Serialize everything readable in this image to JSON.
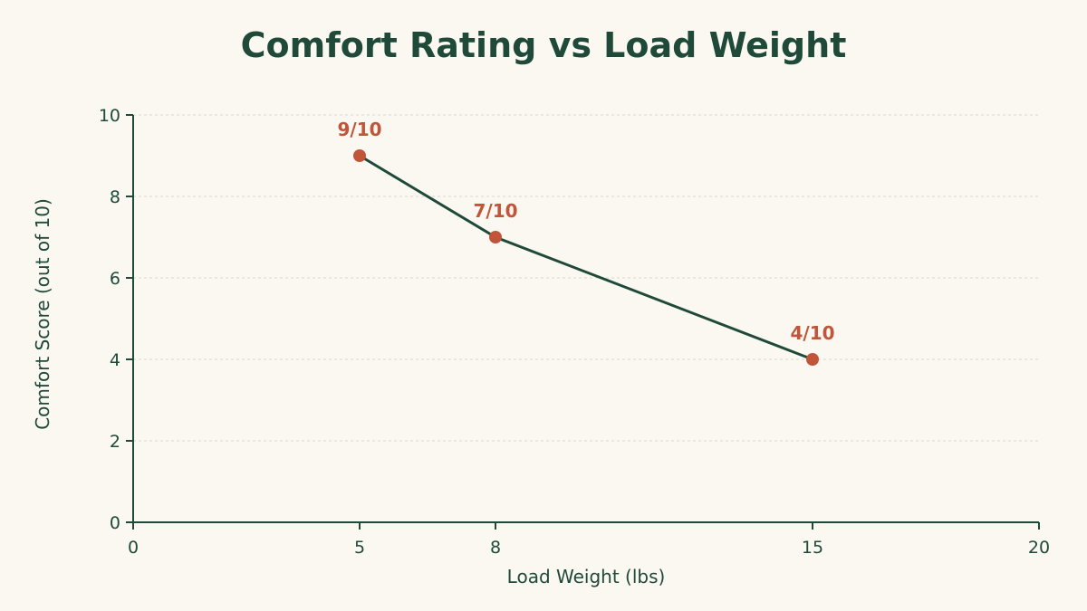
{
  "chart_data": {
    "type": "line",
    "title": "Comfort Rating vs Load Weight",
    "xlabel": "Load Weight (lbs)",
    "ylabel": "Comfort Score (out of 10)",
    "xlim": [
      0,
      20
    ],
    "ylim": [
      0,
      10
    ],
    "x_ticks": [
      0,
      5,
      8,
      15,
      20
    ],
    "y_ticks": [
      0,
      2,
      4,
      6,
      8,
      10
    ],
    "grid": "horizontal-dashed",
    "legend": "none",
    "series": [
      {
        "x": [
          5,
          8,
          15
        ],
        "y": [
          9,
          7,
          4
        ],
        "labels": [
          "9/10",
          "7/10",
          "4/10"
        ]
      }
    ],
    "colors": {
      "line": "#1f4a3a",
      "marker": "#c0553a",
      "data_label": "#c0553a",
      "axis": "#1f4a3a",
      "grid": "#d9d6cc",
      "background": "#fbf8f1"
    }
  }
}
